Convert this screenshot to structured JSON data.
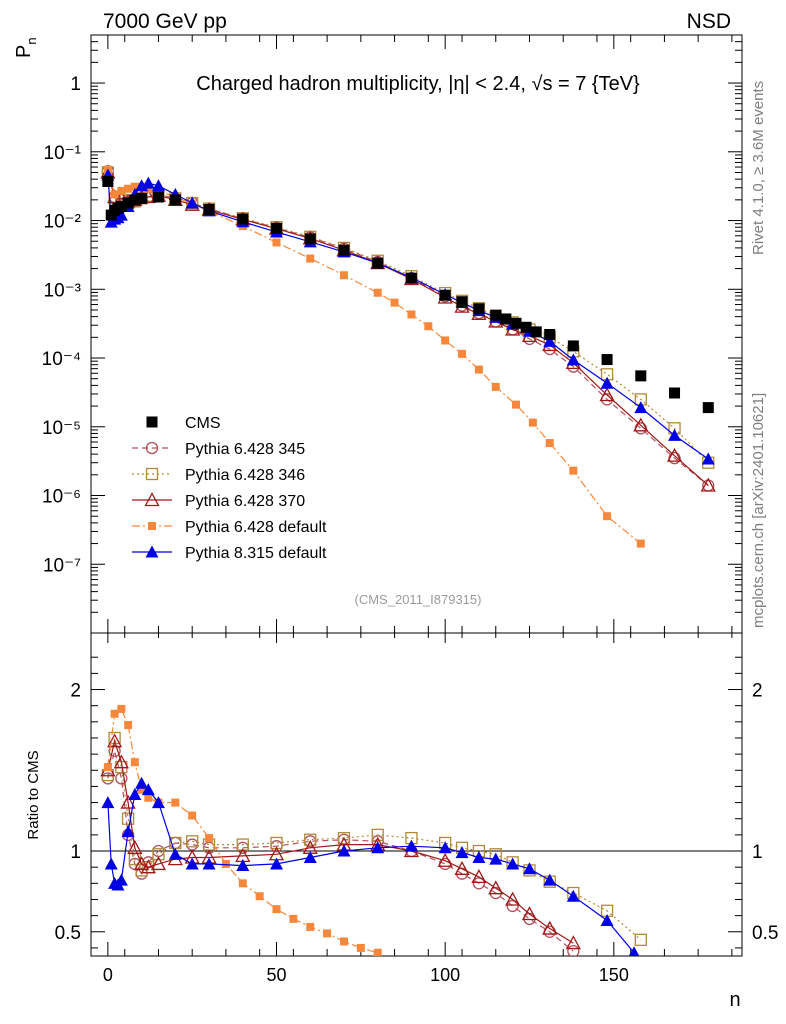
{
  "header": {
    "left_label": "7000 GeV pp",
    "right_label": "NSD"
  },
  "side_labels": {
    "rivet": "Rivet 4.1.0, ≥ 3.6M events",
    "source": "mcplots.cern.ch [arXiv:2401.10621]"
  },
  "chart_data": {
    "type": "scatter",
    "title": "Charged hadron multiplicity, |η| < 2.4, √s = 7 {TeV}",
    "analysis_tag": "(CMS_2011_I879315)",
    "xlabel": "n",
    "ylabel_main": "P_n",
    "ylabel_ratio": "Ratio to CMS",
    "xlim": [
      -5,
      188
    ],
    "ylim_main": [
      1e-08,
      5
    ],
    "ylim_ratio": [
      0.35,
      2.35
    ],
    "ratio_reference_line": 1,
    "legend_position": "bottom-left",
    "x_ticks": [
      "0",
      "50",
      "100",
      "150"
    ],
    "y_ticks_main": [
      "1",
      "10⁻¹",
      "10⁻²",
      "10⁻³",
      "10⁻⁴",
      "10⁻⁵",
      "10⁻⁶",
      "10⁻⁷"
    ],
    "y_ticks_ratio": [
      "2",
      "1",
      "0.5"
    ],
    "cms_data": {
      "x": [
        0,
        1,
        2,
        3,
        4,
        6,
        8,
        10,
        15,
        20,
        30,
        40,
        50,
        60,
        70,
        80,
        90,
        100,
        105,
        110,
        115,
        118,
        121,
        124,
        127,
        131,
        138,
        148,
        158,
        168,
        178
      ],
      "y": [
        0.037,
        0.012,
        0.014,
        0.015,
        0.016,
        0.018,
        0.02,
        0.021,
        0.022,
        0.02,
        0.0145,
        0.0105,
        0.0077,
        0.0054,
        0.0037,
        0.0024,
        0.00145,
        0.00082,
        0.00066,
        0.00052,
        0.00042,
        0.00037,
        0.00032,
        0.00028,
        0.00024,
        0.00022,
        0.00015,
        9.5e-05,
        5.5e-05,
        3.1e-05,
        1.9e-05
      ]
    },
    "series": [
      {
        "name": "Pythia 6.428 345",
        "color": "#b0505a",
        "marker": "circle",
        "line": "dashed",
        "x": [
          0,
          2,
          4,
          6,
          8,
          10,
          12,
          15,
          20,
          25,
          30,
          40,
          50,
          60,
          70,
          80,
          90,
          100,
          105,
          110,
          115,
          120,
          125,
          131,
          138,
          148,
          158,
          168,
          178
        ],
        "y": [
          0.052,
          0.022,
          0.02,
          0.018,
          0.019,
          0.021,
          0.022,
          0.024,
          0.021,
          0.018,
          0.0148,
          0.0106,
          0.0078,
          0.0057,
          0.0039,
          0.0025,
          0.00146,
          0.00079,
          0.00058,
          0.00045,
          0.00034,
          0.00026,
          0.00019,
          0.000135,
          7.5e-05,
          2.5e-05,
          9.5e-06,
          3.5e-06,
          1.4e-06
        ],
        "ratio_x": [
          0,
          2,
          4,
          6,
          8,
          10,
          12,
          15,
          20,
          25,
          30,
          40,
          50,
          60,
          70,
          80,
          90,
          100,
          105,
          110,
          115,
          120,
          125,
          131,
          138
        ],
        "ratio_y": [
          1.45,
          1.62,
          1.45,
          1.1,
          0.92,
          0.86,
          0.93,
          1.0,
          1.05,
          1.04,
          1.02,
          1.02,
          1.03,
          1.06,
          1.07,
          1.06,
          1.0,
          0.92,
          0.86,
          0.8,
          0.74,
          0.66,
          0.58,
          0.5,
          0.38
        ]
      },
      {
        "name": "Pythia 6.428 346",
        "color": "#b08a3a",
        "marker": "square",
        "line": "dotted",
        "x": [
          0,
          2,
          4,
          6,
          8,
          10,
          12,
          15,
          20,
          25,
          30,
          40,
          50,
          60,
          70,
          80,
          90,
          100,
          105,
          110,
          115,
          120,
          125,
          131,
          138,
          148,
          158,
          168,
          178
        ],
        "y": [
          0.05,
          0.021,
          0.02,
          0.018,
          0.019,
          0.021,
          0.023,
          0.024,
          0.021,
          0.018,
          0.0149,
          0.0108,
          0.008,
          0.0058,
          0.004,
          0.0026,
          0.00155,
          0.00088,
          0.00068,
          0.00053,
          0.00041,
          0.00033,
          0.00026,
          0.0002,
          0.000125,
          5.8e-05,
          2.5e-05,
          9.5e-06,
          3e-06
        ],
        "ratio_x": [
          0,
          2,
          4,
          6,
          8,
          10,
          12,
          15,
          20,
          25,
          30,
          40,
          50,
          60,
          70,
          80,
          90,
          100,
          105,
          110,
          115,
          120,
          125,
          131,
          138,
          148,
          158
        ],
        "ratio_y": [
          1.47,
          1.7,
          1.52,
          1.2,
          0.95,
          0.88,
          0.9,
          0.98,
          1.05,
          1.06,
          1.04,
          1.04,
          1.05,
          1.07,
          1.08,
          1.1,
          1.08,
          1.05,
          1.02,
          1.0,
          0.98,
          0.93,
          0.88,
          0.81,
          0.74,
          0.63,
          0.45
        ]
      },
      {
        "name": "Pythia 6.428 370",
        "color": "#a01818",
        "marker": "triangle-open",
        "line": "solid",
        "x": [
          0,
          2,
          4,
          6,
          8,
          10,
          12,
          15,
          20,
          25,
          30,
          40,
          50,
          60,
          70,
          80,
          90,
          100,
          105,
          110,
          115,
          120,
          125,
          131,
          138,
          148,
          158,
          168,
          178
        ],
        "y": [
          0.05,
          0.022,
          0.021,
          0.019,
          0.02,
          0.022,
          0.022,
          0.023,
          0.02,
          0.017,
          0.0144,
          0.0104,
          0.0076,
          0.0055,
          0.0037,
          0.0024,
          0.00141,
          0.00076,
          0.00056,
          0.00044,
          0.00034,
          0.00026,
          0.00021,
          0.000155,
          8.5e-05,
          2.9e-05,
          1.05e-05,
          3.8e-06,
          1.4e-06
        ],
        "ratio_x": [
          0,
          2,
          4,
          6,
          8,
          10,
          12,
          15,
          20,
          25,
          30,
          40,
          50,
          60,
          70,
          80,
          90,
          100,
          105,
          110,
          115,
          120,
          125,
          131,
          138
        ],
        "ratio_y": [
          1.5,
          1.68,
          1.55,
          1.3,
          1.02,
          0.92,
          0.9,
          0.92,
          0.95,
          0.96,
          0.96,
          0.97,
          0.98,
          1.02,
          1.04,
          1.04,
          1.0,
          0.94,
          0.89,
          0.84,
          0.77,
          0.7,
          0.61,
          0.52,
          0.43
        ]
      },
      {
        "name": "Pythia 6.428 default",
        "color": "#f7873a",
        "marker": "square-filled",
        "line": "dashdot",
        "x": [
          0,
          2,
          4,
          6,
          8,
          10,
          12,
          15,
          20,
          25,
          30,
          40,
          50,
          60,
          70,
          80,
          85,
          90,
          95,
          100,
          105,
          110,
          115,
          121,
          126,
          131,
          138,
          148,
          158
        ],
        "y": [
          0.055,
          0.024,
          0.027,
          0.029,
          0.031,
          0.031,
          0.029,
          0.027,
          0.022,
          0.0175,
          0.0137,
          0.0083,
          0.0048,
          0.0028,
          0.0016,
          0.00089,
          0.00064,
          0.00043,
          0.00029,
          0.00018,
          0.000115,
          6.8e-05,
          3.8e-05,
          2.1e-05,
          1.15e-05,
          5.8e-06,
          2.3e-06,
          5e-07,
          2e-07
        ],
        "ratio_x": [
          0,
          2,
          4,
          6,
          8,
          10,
          12,
          15,
          20,
          25,
          30,
          35,
          40,
          45,
          50,
          55,
          60,
          65,
          70,
          75,
          80
        ],
        "ratio_y": [
          1.52,
          1.85,
          1.88,
          1.78,
          1.55,
          1.38,
          1.33,
          1.3,
          1.3,
          1.22,
          1.08,
          0.92,
          0.8,
          0.72,
          0.64,
          0.58,
          0.53,
          0.49,
          0.44,
          0.4,
          0.37
        ]
      },
      {
        "name": "Pythia 8.315 default",
        "color": "#0000e6",
        "marker": "triangle-filled",
        "line": "solid",
        "x": [
          0,
          1,
          2,
          3,
          4,
          6,
          8,
          10,
          12,
          15,
          20,
          25,
          30,
          40,
          50,
          60,
          70,
          80,
          90,
          100,
          105,
          110,
          115,
          120,
          125,
          131,
          138,
          148,
          158,
          168,
          178
        ],
        "y": [
          0.046,
          0.0095,
          0.0105,
          0.011,
          0.012,
          0.016,
          0.024,
          0.032,
          0.035,
          0.032,
          0.024,
          0.018,
          0.0138,
          0.0096,
          0.0068,
          0.0049,
          0.0035,
          0.0024,
          0.00148,
          0.00084,
          0.00064,
          0.00049,
          0.00039,
          0.00031,
          0.000245,
          0.000175,
          9.4e-05,
          4.3e-05,
          1.9e-05,
          7.5e-06,
          3.4e-06
        ],
        "ratio_x": [
          0,
          1,
          2,
          3,
          4,
          6,
          8,
          10,
          12,
          15,
          20,
          25,
          30,
          40,
          50,
          60,
          70,
          80,
          90,
          100,
          105,
          110,
          115,
          120,
          125,
          131,
          138,
          148,
          156
        ],
        "ratio_y": [
          1.3,
          0.92,
          0.8,
          0.79,
          0.82,
          1.12,
          1.35,
          1.42,
          1.38,
          1.3,
          0.98,
          0.92,
          0.92,
          0.91,
          0.92,
          0.96,
          1.0,
          1.02,
          1.03,
          1.02,
          0.99,
          0.96,
          0.95,
          0.92,
          0.89,
          0.82,
          0.72,
          0.57,
          0.37
        ]
      }
    ]
  }
}
